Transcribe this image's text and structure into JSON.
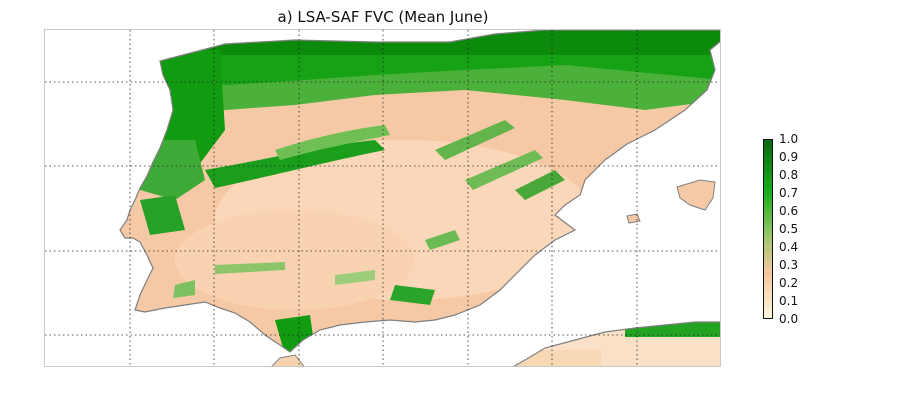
{
  "map": {
    "title": "a)  LSA-SAF FVC (Mean June)",
    "variable": "Fractional Vegetation Cover",
    "colorbar": {
      "ticks": [
        "0.0",
        "0.1",
        "0.2",
        "0.3",
        "0.4",
        "0.5",
        "0.6",
        "0.7",
        "0.8",
        "0.9",
        "1.0"
      ],
      "range": [
        0.0,
        1.0
      ],
      "colors": {
        "low": "#fff7dc",
        "mid_low": "#f6c6a0",
        "mid": "#9fc86a",
        "mid_high": "#19b019",
        "high": "#0a6a10"
      }
    },
    "ocean_color": "#ffffff",
    "coast_color": "#7f7f7f",
    "grid": "dotted"
  }
}
